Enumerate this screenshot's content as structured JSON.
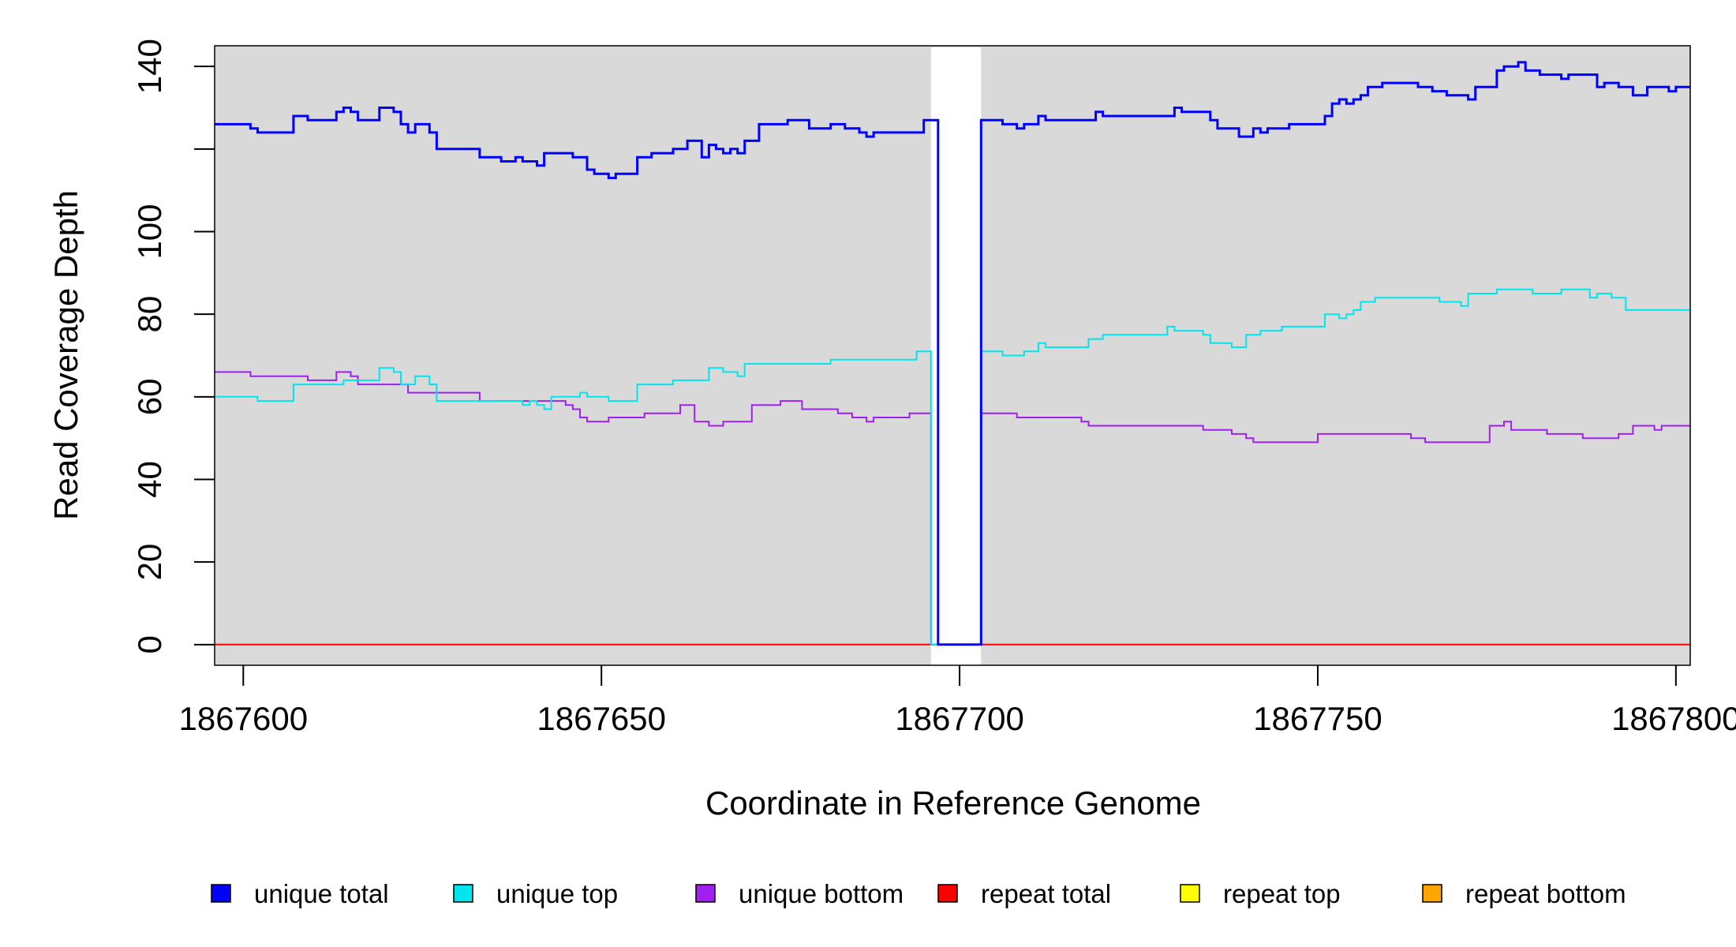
{
  "chart_data": {
    "type": "line",
    "xlabel": "Coordinate in Reference Genome",
    "ylabel": "Read Coverage Depth",
    "xlim": [
      1867596,
      1867802
    ],
    "ylim": [
      -5,
      145
    ],
    "x_ticks": [
      1867600,
      1867650,
      1867700,
      1867750,
      1867800
    ],
    "x_tick_labels": [
      "1867600",
      "1867650",
      "1867700",
      "1867750",
      "1867800"
    ],
    "y_ticks": [
      0,
      20,
      40,
      60,
      80,
      100,
      120,
      140
    ],
    "y_tick_labels": [
      "0",
      "20",
      "40",
      "60",
      "80",
      "100",
      "",
      "140"
    ],
    "background": "#d9d9d9",
    "gap_region": [
      1867696,
      1867703
    ],
    "legend_position": "bottom",
    "legend": [
      {
        "label": "unique total",
        "color": "#0000ff"
      },
      {
        "label": "unique top",
        "color": "#00e5ee"
      },
      {
        "label": "unique bottom",
        "color": "#a020f0"
      },
      {
        "label": "repeat total",
        "color": "#ff0000"
      },
      {
        "label": "repeat top",
        "color": "#ffff00"
      },
      {
        "label": "repeat bottom",
        "color": "#ffa500"
      }
    ],
    "series": [
      {
        "name": "unique total",
        "color": "#0000ff",
        "points": [
          [
            1867596,
            126
          ],
          [
            1867601,
            125
          ],
          [
            1867602,
            124
          ],
          [
            1867607,
            128
          ],
          [
            1867609,
            127
          ],
          [
            1867613,
            129
          ],
          [
            1867614,
            130
          ],
          [
            1867615,
            129
          ],
          [
            1867616,
            127
          ],
          [
            1867619,
            130
          ],
          [
            1867621,
            129
          ],
          [
            1867622,
            126
          ],
          [
            1867623,
            124
          ],
          [
            1867624,
            126
          ],
          [
            1867626,
            124
          ],
          [
            1867627,
            120
          ],
          [
            1867633,
            118
          ],
          [
            1867636,
            117
          ],
          [
            1867638,
            118
          ],
          [
            1867639,
            117
          ],
          [
            1867641,
            116
          ],
          [
            1867642,
            119
          ],
          [
            1867646,
            118
          ],
          [
            1867648,
            115
          ],
          [
            1867649,
            114
          ],
          [
            1867651,
            113
          ],
          [
            1867652,
            114
          ],
          [
            1867655,
            118
          ],
          [
            1867657,
            119
          ],
          [
            1867660,
            120
          ],
          [
            1867662,
            122
          ],
          [
            1867664,
            118
          ],
          [
            1867665,
            121
          ],
          [
            1867666,
            120
          ],
          [
            1867667,
            119
          ],
          [
            1867668,
            120
          ],
          [
            1867669,
            119
          ],
          [
            1867670,
            122
          ],
          [
            1867672,
            126
          ],
          [
            1867676,
            127
          ],
          [
            1867679,
            125
          ],
          [
            1867682,
            126
          ],
          [
            1867684,
            125
          ],
          [
            1867686,
            124
          ],
          [
            1867687,
            123
          ],
          [
            1867688,
            124
          ],
          [
            1867695,
            127
          ],
          [
            1867697,
            0
          ],
          [
            1867703,
            127
          ],
          [
            1867706,
            126
          ],
          [
            1867708,
            125
          ],
          [
            1867709,
            126
          ],
          [
            1867711,
            128
          ],
          [
            1867712,
            127
          ],
          [
            1867719,
            129
          ],
          [
            1867720,
            128
          ],
          [
            1867730,
            130
          ],
          [
            1867731,
            129
          ],
          [
            1867735,
            127
          ],
          [
            1867736,
            125
          ],
          [
            1867739,
            123
          ],
          [
            1867741,
            125
          ],
          [
            1867742,
            124
          ],
          [
            1867743,
            125
          ],
          [
            1867746,
            126
          ],
          [
            1867751,
            128
          ],
          [
            1867752,
            131
          ],
          [
            1867753,
            132
          ],
          [
            1867754,
            131
          ],
          [
            1867755,
            132
          ],
          [
            1867756,
            133
          ],
          [
            1867757,
            135
          ],
          [
            1867759,
            136
          ],
          [
            1867764,
            135
          ],
          [
            1867766,
            134
          ],
          [
            1867768,
            133
          ],
          [
            1867771,
            132
          ],
          [
            1867772,
            135
          ],
          [
            1867775,
            139
          ],
          [
            1867776,
            140
          ],
          [
            1867778,
            141
          ],
          [
            1867779,
            139
          ],
          [
            1867781,
            138
          ],
          [
            1867784,
            137
          ],
          [
            1867785,
            138
          ],
          [
            1867789,
            135
          ],
          [
            1867790,
            136
          ],
          [
            1867792,
            135
          ],
          [
            1867794,
            133
          ],
          [
            1867796,
            135
          ],
          [
            1867799,
            134
          ],
          [
            1867800,
            135
          ],
          [
            1867802,
            135
          ]
        ]
      },
      {
        "name": "unique top",
        "color": "#00e5ee",
        "points": [
          [
            1867596,
            60
          ],
          [
            1867602,
            59
          ],
          [
            1867607,
            63
          ],
          [
            1867614,
            64
          ],
          [
            1867617,
            64
          ],
          [
            1867619,
            67
          ],
          [
            1867621,
            66
          ],
          [
            1867622,
            63
          ],
          [
            1867624,
            65
          ],
          [
            1867626,
            63
          ],
          [
            1867627,
            59
          ],
          [
            1867635,
            59
          ],
          [
            1867639,
            58
          ],
          [
            1867640,
            59
          ],
          [
            1867641,
            58
          ],
          [
            1867642,
            57
          ],
          [
            1867643,
            60
          ],
          [
            1867647,
            61
          ],
          [
            1867648,
            60
          ],
          [
            1867651,
            59
          ],
          [
            1867655,
            63
          ],
          [
            1867660,
            64
          ],
          [
            1867665,
            67
          ],
          [
            1867667,
            66
          ],
          [
            1867669,
            65
          ],
          [
            1867670,
            68
          ],
          [
            1867682,
            69
          ],
          [
            1867694,
            71
          ],
          [
            1867696,
            0
          ],
          [
            1867703,
            71
          ],
          [
            1867706,
            70
          ],
          [
            1867709,
            71
          ],
          [
            1867711,
            73
          ],
          [
            1867712,
            72
          ],
          [
            1867718,
            74
          ],
          [
            1867720,
            75
          ],
          [
            1867729,
            77
          ],
          [
            1867730,
            76
          ],
          [
            1867734,
            75
          ],
          [
            1867735,
            73
          ],
          [
            1867738,
            72
          ],
          [
            1867740,
            75
          ],
          [
            1867742,
            76
          ],
          [
            1867745,
            77
          ],
          [
            1867751,
            80
          ],
          [
            1867753,
            79
          ],
          [
            1867754,
            80
          ],
          [
            1867755,
            81
          ],
          [
            1867756,
            83
          ],
          [
            1867758,
            84
          ],
          [
            1867767,
            83
          ],
          [
            1867770,
            82
          ],
          [
            1867771,
            85
          ],
          [
            1867775,
            86
          ],
          [
            1867780,
            85
          ],
          [
            1867784,
            86
          ],
          [
            1867788,
            84
          ],
          [
            1867789,
            85
          ],
          [
            1867791,
            84
          ],
          [
            1867793,
            81
          ],
          [
            1867802,
            81
          ]
        ]
      },
      {
        "name": "unique bottom",
        "color": "#a020f0",
        "points": [
          [
            1867596,
            66
          ],
          [
            1867601,
            65
          ],
          [
            1867609,
            64
          ],
          [
            1867613,
            66
          ],
          [
            1867615,
            65
          ],
          [
            1867616,
            63
          ],
          [
            1867623,
            61
          ],
          [
            1867633,
            59
          ],
          [
            1867645,
            58
          ],
          [
            1867646,
            57
          ],
          [
            1867647,
            55
          ],
          [
            1867648,
            54
          ],
          [
            1867651,
            55
          ],
          [
            1867656,
            56
          ],
          [
            1867661,
            58
          ],
          [
            1867663,
            54
          ],
          [
            1867665,
            53
          ],
          [
            1867667,
            54
          ],
          [
            1867671,
            58
          ],
          [
            1867675,
            59
          ],
          [
            1867678,
            57
          ],
          [
            1867683,
            56
          ],
          [
            1867685,
            55
          ],
          [
            1867687,
            54
          ],
          [
            1867688,
            55
          ],
          [
            1867693,
            56
          ],
          [
            1867696,
            0
          ],
          [
            1867703,
            56
          ],
          [
            1867708,
            55
          ],
          [
            1867717,
            54
          ],
          [
            1867718,
            53
          ],
          [
            1867734,
            52
          ],
          [
            1867738,
            51
          ],
          [
            1867740,
            50
          ],
          [
            1867741,
            49
          ],
          [
            1867750,
            51
          ],
          [
            1867763,
            50
          ],
          [
            1867765,
            49
          ],
          [
            1867774,
            53
          ],
          [
            1867776,
            54
          ],
          [
            1867777,
            52
          ],
          [
            1867782,
            51
          ],
          [
            1867787,
            50
          ],
          [
            1867792,
            51
          ],
          [
            1867794,
            53
          ],
          [
            1867797,
            52
          ],
          [
            1867798,
            53
          ],
          [
            1867802,
            53
          ]
        ]
      },
      {
        "name": "repeat total",
        "color": "#ff0000",
        "points": [
          [
            1867596,
            0
          ],
          [
            1867802,
            0
          ]
        ]
      },
      {
        "name": "repeat top",
        "color": "#ffff00",
        "points": [
          [
            1867596,
            0
          ],
          [
            1867802,
            0
          ]
        ]
      },
      {
        "name": "repeat bottom",
        "color": "#ffa500",
        "points": [
          [
            1867596,
            0
          ],
          [
            1867802,
            0
          ]
        ]
      }
    ]
  }
}
